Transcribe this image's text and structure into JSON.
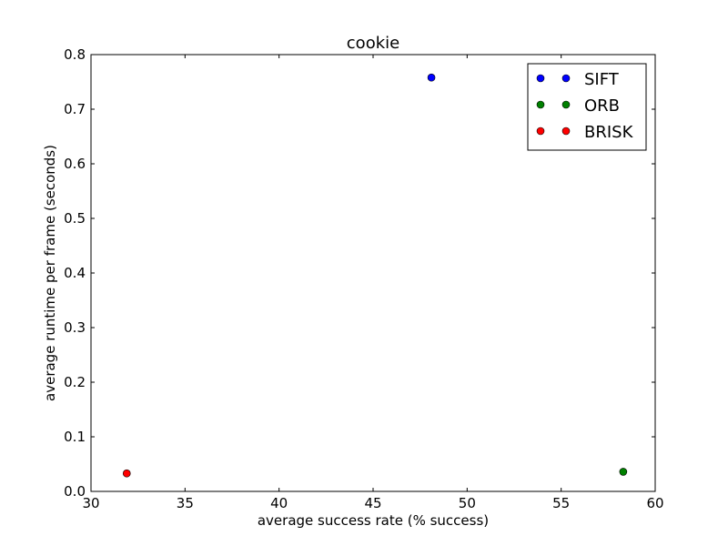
{
  "chart_data": {
    "type": "scatter",
    "title": "cookie",
    "xlabel": "average success rate (% success)",
    "ylabel": "average runtime per frame (seconds)",
    "xlim": [
      30,
      60
    ],
    "ylim": [
      0.0,
      0.8
    ],
    "xticks": [
      30,
      35,
      40,
      45,
      50,
      55,
      60
    ],
    "xtick_labels": [
      "30",
      "35",
      "40",
      "45",
      "50",
      "55",
      "60"
    ],
    "yticks": [
      0.0,
      0.1,
      0.2,
      0.3,
      0.4,
      0.5,
      0.6,
      0.7,
      0.8
    ],
    "ytick_labels": [
      "0.0",
      "0.1",
      "0.2",
      "0.3",
      "0.4",
      "0.5",
      "0.6",
      "0.7",
      "0.8"
    ],
    "grid": false,
    "legend_position": "top-right",
    "series": [
      {
        "name": "SIFT",
        "color": "#0000ff",
        "x": [
          48.1
        ],
        "y": [
          0.758
        ]
      },
      {
        "name": "ORB",
        "color": "#008000",
        "x": [
          58.3
        ],
        "y": [
          0.036
        ]
      },
      {
        "name": "BRISK",
        "color": "#ff0000",
        "x": [
          31.9
        ],
        "y": [
          0.033
        ]
      }
    ]
  }
}
